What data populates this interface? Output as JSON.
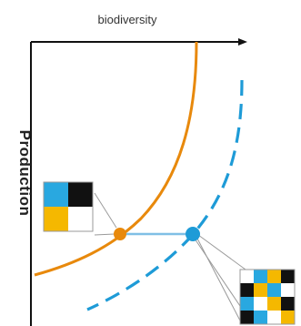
{
  "axes": {
    "x_label": "biodiversity",
    "y_label": "Production",
    "axis_color": "#111111"
  },
  "curves": {
    "solid_color": "#E8890C",
    "dashed_color": "#1E9BD7"
  },
  "points": {
    "orange_marker_color": "#E8890C",
    "blue_marker_color": "#1E9BD7",
    "connector_color": "#7FBFE5"
  },
  "patch_palette": {
    "blue": "#29A8E0",
    "black": "#111111",
    "yellow": "#F5B800",
    "white": "#FFFFFF"
  },
  "patch_small": [
    [
      "blue",
      "black"
    ],
    [
      "yellow",
      "white"
    ]
  ],
  "patch_large": [
    [
      "white",
      "blue",
      "yellow",
      "black"
    ],
    [
      "black",
      "yellow",
      "blue",
      "white"
    ],
    [
      "blue",
      "white",
      "yellow",
      "black"
    ],
    [
      "black",
      "blue",
      "white",
      "yellow"
    ]
  ]
}
